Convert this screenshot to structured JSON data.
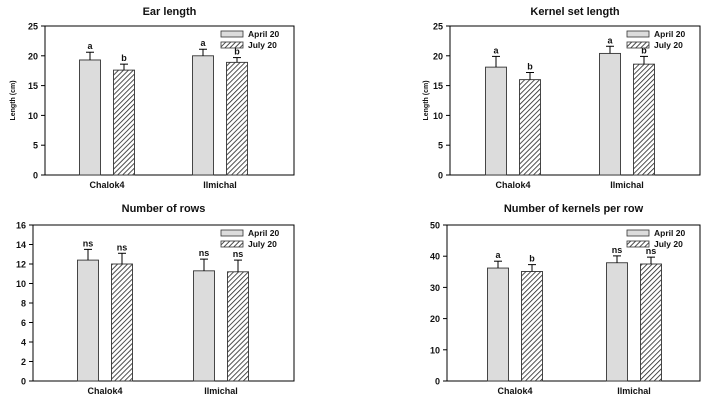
{
  "chart_data": [
    {
      "type": "bar",
      "title": "Ear length",
      "ylabel": "Length (cm)",
      "xlabel": "",
      "categories": [
        "Chalok4",
        "Ilmichal"
      ],
      "ylim": [
        0,
        25
      ],
      "yticks": [
        0,
        5,
        10,
        15,
        20,
        25
      ],
      "legend_position": "top-right",
      "series": [
        {
          "name": "April 20",
          "pattern": "solid-gray",
          "values": [
            19.3,
            20.0
          ],
          "errors": [
            1.3,
            1.1
          ],
          "labels": [
            "a",
            "a"
          ]
        },
        {
          "name": "July 20",
          "pattern": "hatched",
          "values": [
            17.6,
            18.9
          ],
          "errors": [
            1.0,
            0.8
          ],
          "labels": [
            "b",
            "b"
          ]
        }
      ]
    },
    {
      "type": "bar",
      "title": "Kernel set length",
      "ylabel": "Length (cm)",
      "xlabel": "",
      "categories": [
        "Chalok4",
        "Ilmichal"
      ],
      "ylim": [
        0,
        25
      ],
      "yticks": [
        0,
        5,
        10,
        15,
        20,
        25
      ],
      "legend_position": "top-right",
      "series": [
        {
          "name": "April 20",
          "pattern": "solid-gray",
          "values": [
            18.1,
            20.4
          ],
          "errors": [
            1.8,
            1.2
          ],
          "labels": [
            "a",
            "a"
          ]
        },
        {
          "name": "July 20",
          "pattern": "hatched",
          "values": [
            16.0,
            18.6
          ],
          "errors": [
            1.2,
            1.3
          ],
          "labels": [
            "b",
            "b"
          ]
        }
      ]
    },
    {
      "type": "bar",
      "title": "Number of rows",
      "ylabel": "",
      "xlabel": "",
      "categories": [
        "Chalok4",
        "Ilmichal"
      ],
      "ylim": [
        0,
        16
      ],
      "yticks": [
        0,
        2,
        4,
        6,
        8,
        10,
        12,
        14,
        16
      ],
      "legend_position": "top-right",
      "series": [
        {
          "name": "April 20",
          "pattern": "solid-gray",
          "values": [
            12.4,
            11.3
          ],
          "errors": [
            1.1,
            1.2
          ],
          "labels": [
            "ns",
            "ns"
          ]
        },
        {
          "name": "July 20",
          "pattern": "hatched",
          "values": [
            12.0,
            11.2
          ],
          "errors": [
            1.1,
            1.2
          ],
          "labels": [
            "ns",
            "ns"
          ]
        }
      ]
    },
    {
      "type": "bar",
      "title": "Number of kernels per row",
      "ylabel": "",
      "xlabel": "",
      "categories": [
        "Chalok4",
        "Ilmichal"
      ],
      "ylim": [
        0,
        50
      ],
      "yticks": [
        0,
        10,
        20,
        30,
        40,
        50
      ],
      "legend_position": "top-right",
      "series": [
        {
          "name": "April 20",
          "pattern": "solid-gray",
          "values": [
            36.2,
            37.9
          ],
          "errors": [
            2.2,
            2.2
          ],
          "labels": [
            "a",
            "ns"
          ]
        },
        {
          "name": "July 20",
          "pattern": "hatched",
          "values": [
            35.1,
            37.5
          ],
          "errors": [
            2.2,
            2.2
          ],
          "labels": [
            "b",
            "ns"
          ]
        }
      ]
    }
  ]
}
